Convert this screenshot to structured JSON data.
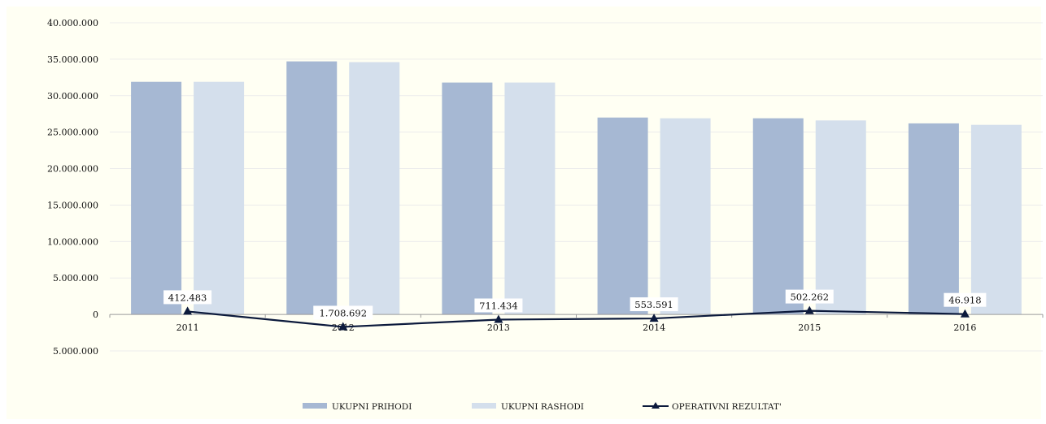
{
  "chart_data": {
    "type": "bar",
    "categories": [
      "2011",
      "2012",
      "2013",
      "2014",
      "2015",
      "2016"
    ],
    "series": [
      {
        "name": "UKUPNI PRIHODI",
        "kind": "bar",
        "color": "#a6b8d3",
        "values": [
          31900000,
          34700000,
          31800000,
          27000000,
          26900000,
          26200000
        ]
      },
      {
        "name": "UKUPNI RASHODI",
        "kind": "bar",
        "color": "#d4dfec",
        "values": [
          31900000,
          34600000,
          31800000,
          26900000,
          26600000,
          26000000
        ]
      },
      {
        "name": "OPERATIVNI REZULTAT'",
        "kind": "line",
        "color": "#0c1a3c",
        "marker": "triangle",
        "values": [
          412483,
          -1708692,
          -711434,
          -553591,
          502262,
          46918
        ],
        "labels": [
          "412.483",
          "1.708.692",
          "711.434",
          "553.591",
          "502.262",
          "46.918"
        ]
      }
    ],
    "y_ticks": [
      {
        "value": 40000000,
        "label": "40.000.000"
      },
      {
        "value": 35000000,
        "label": "35.000.000"
      },
      {
        "value": 30000000,
        "label": "30.000.000"
      },
      {
        "value": 25000000,
        "label": "25.000.000"
      },
      {
        "value": 20000000,
        "label": "20.000.000"
      },
      {
        "value": 15000000,
        "label": "15.000.000"
      },
      {
        "value": 10000000,
        "label": "10.000.000"
      },
      {
        "value": 5000000,
        "label": "5.000.000"
      },
      {
        "value": 0,
        "label": "0"
      },
      {
        "value": -5000000,
        "label": "5.000.000"
      }
    ],
    "ylim": [
      -5000000,
      40000000
    ],
    "title": "",
    "xlabel": "",
    "ylabel": "",
    "grid": true,
    "legend_position": "bottom-center"
  },
  "colors": {
    "plot_background": "#fffff3",
    "grid": "#ececec",
    "axis": "#9a9a9a"
  }
}
